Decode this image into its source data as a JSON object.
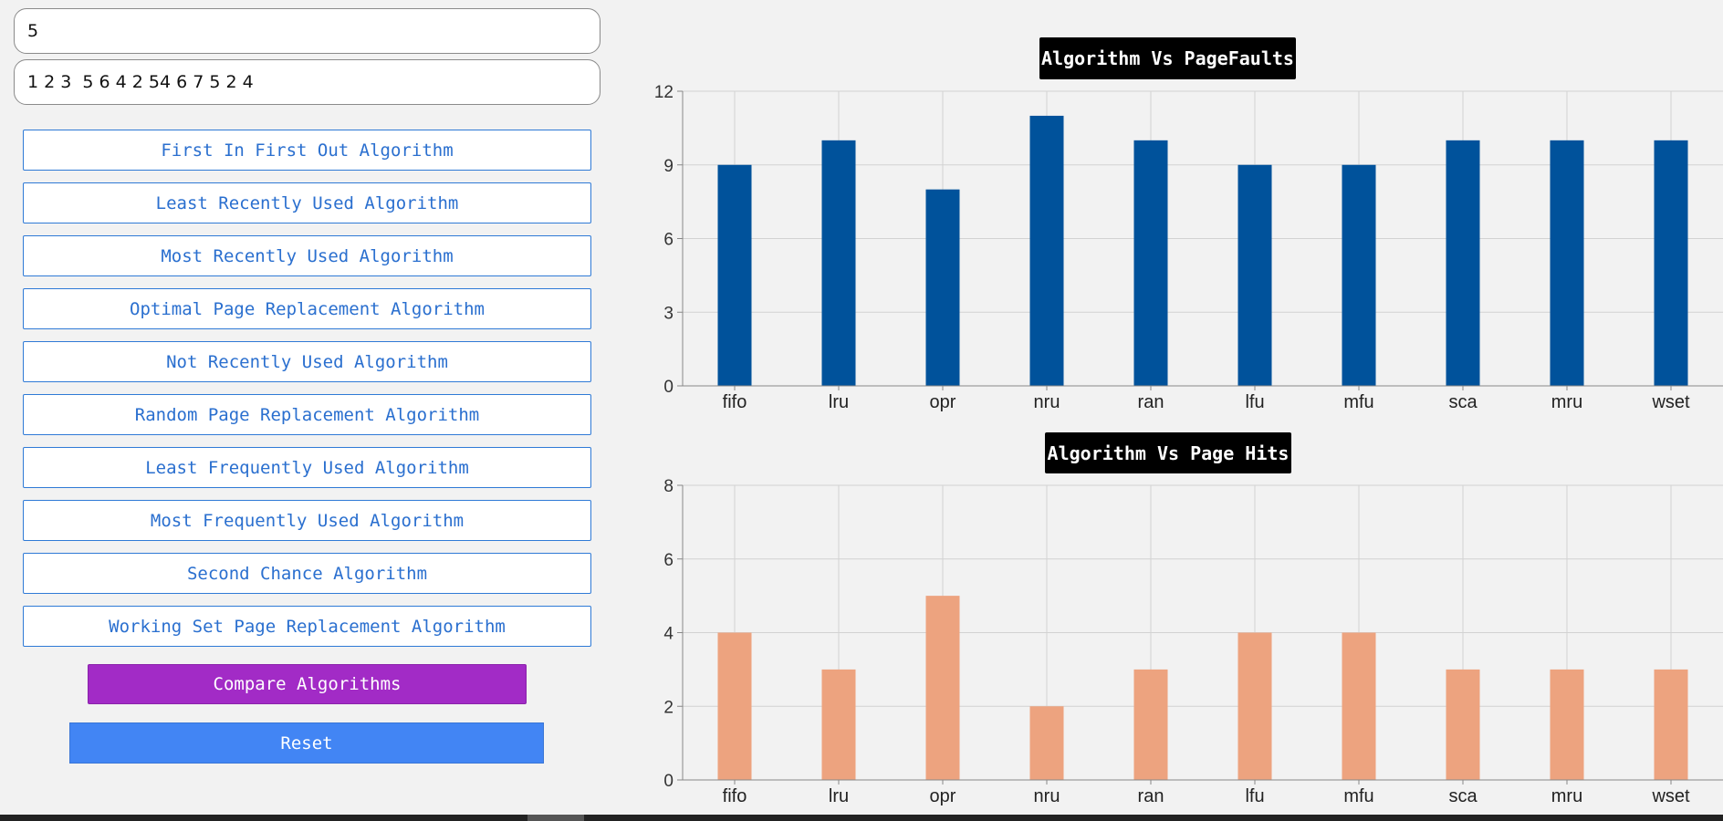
{
  "inputs": {
    "frames_value": "5",
    "reference_string_value": "1 2 3  5 6 4 2 54 6 7 5 2 4"
  },
  "algorithms": [
    "First In First Out Algorithm",
    "Least Recently Used Algorithm",
    "Most Recently Used Algorithm",
    "Optimal Page Replacement Algorithm",
    "Not Recently Used Algorithm",
    "Random Page Replacement Algorithm",
    "Least Frequently Used Algorithm",
    "Most Frequently Used Algorithm",
    "Second Chance Algorithm",
    "Working Set Page Replacement Algorithm"
  ],
  "actions": {
    "compare_label": "Compare Algorithms",
    "reset_label": "Reset"
  },
  "colors": {
    "faults_bar": "#00529b",
    "hits_bar": "#eda37f",
    "compare_button": "#a22bc6",
    "reset_button": "#4285f4",
    "algo_button_text": "#2a6fcf"
  },
  "chart_data": [
    {
      "type": "bar",
      "title": "Algorithm Vs PageFaults",
      "categories": [
        "fifo",
        "lru",
        "opr",
        "nru",
        "ran",
        "lfu",
        "mfu",
        "sca",
        "mru",
        "wset"
      ],
      "values": [
        9,
        10,
        8,
        11,
        10,
        9,
        9,
        10,
        10,
        10
      ],
      "yticks": [
        0,
        3,
        6,
        9,
        12
      ],
      "ylim": [
        0,
        12
      ],
      "grid": true,
      "color": "#00529b"
    },
    {
      "type": "bar",
      "title": "Algorithm Vs Page Hits",
      "categories": [
        "fifo",
        "lru",
        "opr",
        "nru",
        "ran",
        "lfu",
        "mfu",
        "sca",
        "mru",
        "wset"
      ],
      "values": [
        4,
        3,
        5,
        2,
        3,
        4,
        4,
        3,
        3,
        3
      ],
      "yticks": [
        0,
        2,
        4,
        6,
        8
      ],
      "ylim": [
        0,
        8
      ],
      "grid": true,
      "color": "#eda37f"
    }
  ]
}
